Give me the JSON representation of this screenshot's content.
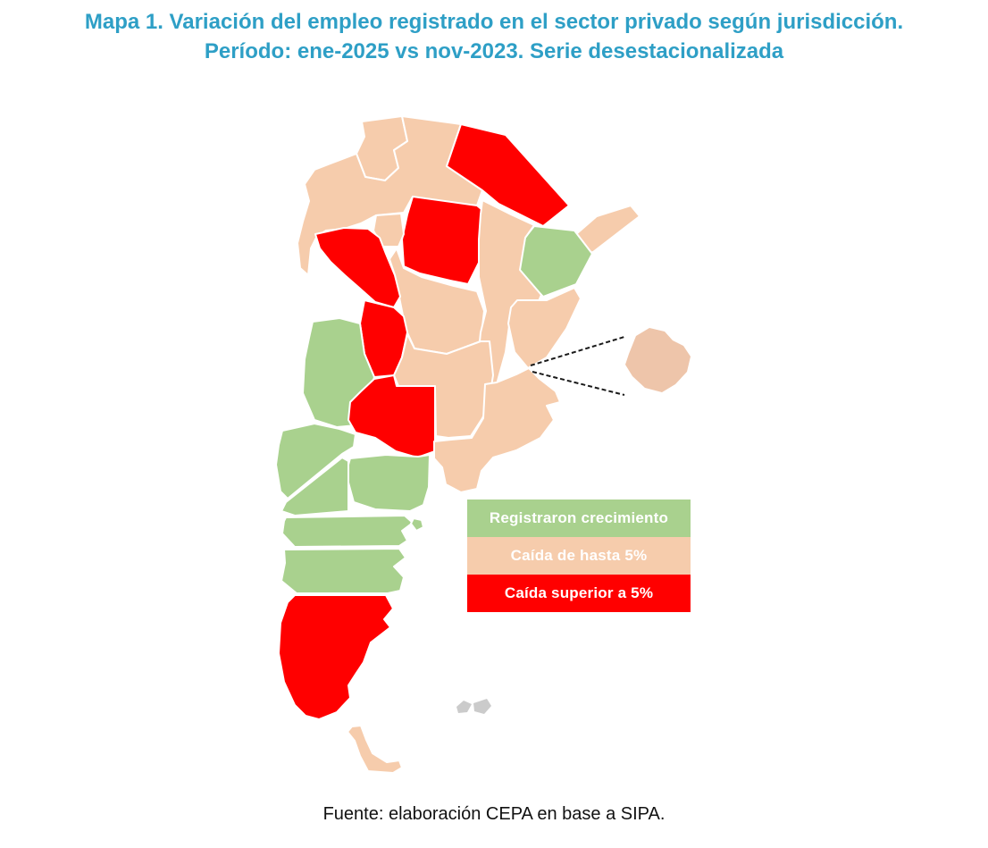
{
  "title": {
    "line1": "Mapa 1. Variación del empleo registrado en el sector privado según jurisdicción.",
    "line2": "Período: ene-2025 vs nov-2023. Serie desestacionalizada",
    "color": "#2E9FC6"
  },
  "legend": {
    "items": [
      {
        "key": "growth",
        "label": "Registraron crecimiento",
        "color": "#A9D18E"
      },
      {
        "key": "fall_up_to_5",
        "label": "Caída de hasta 5%",
        "color": "#F6CCAC"
      },
      {
        "key": "fall_over_5",
        "label": "Caída superior a 5%",
        "color": "#FF0000"
      }
    ]
  },
  "map": {
    "country": "Argentina",
    "provinces": [
      {
        "id": "jujuy",
        "name": "Jujuy",
        "category": "fall_up_to_5"
      },
      {
        "id": "salta",
        "name": "Salta",
        "category": "fall_up_to_5"
      },
      {
        "id": "formosa",
        "name": "Formosa",
        "category": "fall_over_5"
      },
      {
        "id": "chaco",
        "name": "Chaco",
        "category": "fall_over_5"
      },
      {
        "id": "misiones",
        "name": "Misiones",
        "category": "fall_up_to_5"
      },
      {
        "id": "corrientes",
        "name": "Corrientes",
        "category": "growth"
      },
      {
        "id": "tucuman",
        "name": "Tucumán",
        "category": "fall_up_to_5"
      },
      {
        "id": "santiago-del-estero",
        "name": "Santiago del Estero",
        "category": "fall_up_to_5"
      },
      {
        "id": "catamarca",
        "name": "Catamarca",
        "category": "fall_over_5"
      },
      {
        "id": "la-rioja",
        "name": "La Rioja",
        "category": "fall_over_5"
      },
      {
        "id": "santa-fe",
        "name": "Santa Fe",
        "category": "fall_up_to_5"
      },
      {
        "id": "entre-rios",
        "name": "Entre Ríos",
        "category": "fall_up_to_5"
      },
      {
        "id": "san-juan",
        "name": "San Juan",
        "category": "growth"
      },
      {
        "id": "cordoba",
        "name": "Córdoba",
        "category": "fall_up_to_5"
      },
      {
        "id": "san-luis",
        "name": "San Luis",
        "category": "fall_over_5"
      },
      {
        "id": "mendoza",
        "name": "Mendoza",
        "category": "growth"
      },
      {
        "id": "la-pampa",
        "name": "La Pampa",
        "category": "growth"
      },
      {
        "id": "buenos-aires",
        "name": "Buenos Aires",
        "category": "fall_up_to_5"
      },
      {
        "id": "neuquen",
        "name": "Neuquén",
        "category": "growth"
      },
      {
        "id": "rio-negro",
        "name": "Río Negro",
        "category": "growth"
      },
      {
        "id": "peninsula-valdes",
        "name": "Península Valdés",
        "category": "growth"
      },
      {
        "id": "chubut",
        "name": "Chubut",
        "category": "growth"
      },
      {
        "id": "santa-cruz",
        "name": "Santa Cruz",
        "category": "fall_over_5"
      },
      {
        "id": "tierra-del-fuego",
        "name": "Tierra del Fuego",
        "category": "fall_up_to_5"
      }
    ],
    "inset": {
      "id": "caba",
      "name": "Ciudad de Buenos Aires",
      "category": "fall_up_to_5",
      "color": "#EEC5AA"
    },
    "islands": [
      {
        "id": "malvinas-west",
        "name": "Islas Malvinas",
        "color": "#CBCBCB"
      },
      {
        "id": "malvinas-east",
        "name": "Islas Malvinas",
        "color": "#CBCBCB"
      }
    ]
  },
  "footer": {
    "text": "Fuente: elaboración CEPA en base a SIPA."
  }
}
